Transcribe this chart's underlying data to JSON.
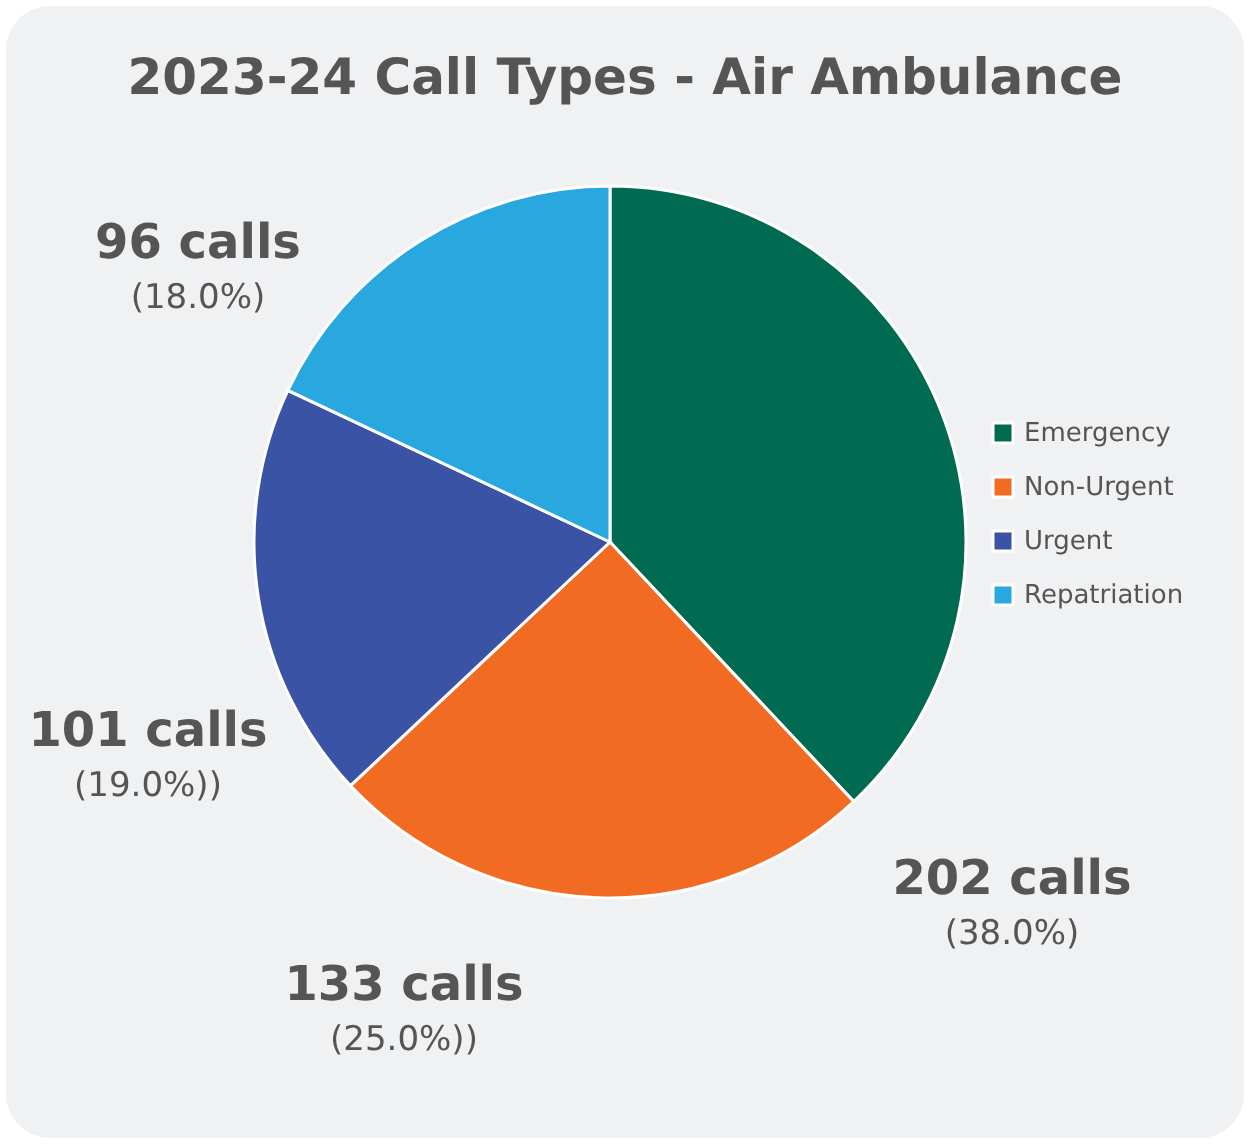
{
  "chart_data": {
    "type": "pie",
    "title": "2023-24 Call Types - Air Ambulance",
    "categories": [
      "Emergency",
      "Non-Urgent",
      "Urgent",
      "Repatriation"
    ],
    "values": [
      38.0,
      25.0,
      19.0,
      18.0
    ],
    "colors": [
      "#006b50",
      "#f26b22",
      "#3a53a4",
      "#29a8e0"
    ],
    "value_labels": [
      "202 calls\n(38.0%)",
      "133 calls\n(25.0%))",
      "101 calls\n(19.0%))",
      "96 calls\n(18.0%)"
    ],
    "legend": "right"
  }
}
